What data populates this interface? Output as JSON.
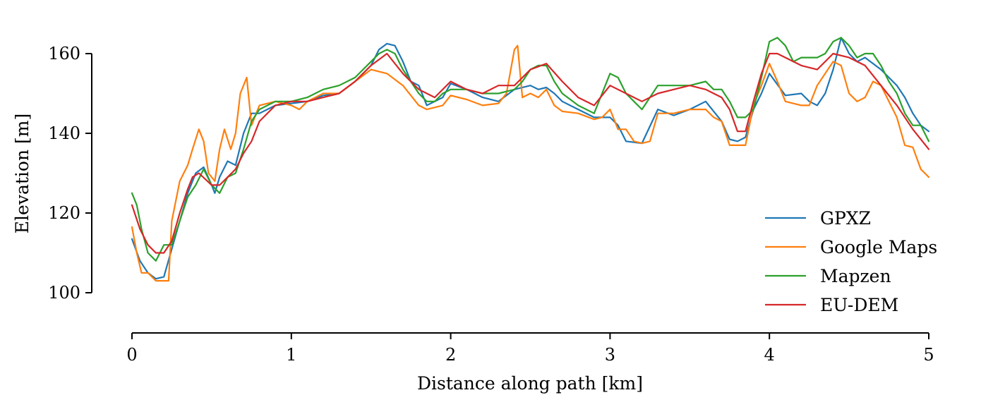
{
  "chart_data": {
    "type": "line",
    "xlabel": "Distance along path [km]",
    "ylabel": "Elevation [m]",
    "xlim": [
      0,
      5
    ],
    "ylim": [
      90,
      168
    ],
    "x_ticks": [
      0,
      1,
      2,
      3,
      4,
      5
    ],
    "y_ticks": [
      100,
      120,
      140,
      160
    ],
    "y_axis_span": [
      100,
      160
    ],
    "grid": false,
    "legend_position": "lower-right",
    "series": [
      {
        "name": "GPXZ",
        "color": "#1f77b4",
        "x": [
          0,
          0.05,
          0.1,
          0.15,
          0.2,
          0.25,
          0.3,
          0.35,
          0.4,
          0.45,
          0.5,
          0.52,
          0.55,
          0.6,
          0.65,
          0.7,
          0.75,
          0.8,
          0.9,
          1.0,
          1.1,
          1.2,
          1.3,
          1.4,
          1.5,
          1.55,
          1.6,
          1.65,
          1.7,
          1.75,
          1.8,
          1.85,
          1.9,
          1.95,
          2.0,
          2.1,
          2.2,
          2.3,
          2.4,
          2.5,
          2.55,
          2.6,
          2.65,
          2.7,
          2.8,
          2.9,
          3.0,
          3.05,
          3.1,
          3.2,
          3.3,
          3.4,
          3.5,
          3.6,
          3.7,
          3.75,
          3.8,
          3.85,
          3.9,
          3.95,
          4.0,
          4.1,
          4.2,
          4.25,
          4.3,
          4.35,
          4.4,
          4.45,
          4.5,
          4.55,
          4.6,
          4.7,
          4.8,
          4.85,
          4.9,
          4.95,
          5.0
        ],
        "y": [
          113.5,
          108,
          105,
          103.5,
          104,
          111,
          118,
          125,
          130,
          131.5,
          127,
          125,
          129,
          133,
          132,
          140,
          145,
          145,
          147,
          147.5,
          148,
          149.5,
          150,
          153,
          157,
          161,
          162.5,
          162,
          158,
          153,
          152,
          147,
          148,
          149,
          152.5,
          151,
          149,
          148,
          151,
          152,
          151,
          151.5,
          150,
          148,
          146,
          144,
          144,
          142,
          138,
          137.5,
          146,
          144.5,
          146,
          148,
          143,
          138.5,
          138,
          139,
          146,
          150,
          155,
          149.5,
          150,
          148,
          147,
          150,
          156,
          164,
          160,
          158,
          159,
          156,
          152,
          149,
          145,
          142,
          140.5
        ]
      },
      {
        "name": "Google Maps",
        "color": "#ff7f0e",
        "x": [
          0,
          0.03,
          0.06,
          0.1,
          0.15,
          0.2,
          0.23,
          0.25,
          0.3,
          0.35,
          0.38,
          0.42,
          0.45,
          0.48,
          0.52,
          0.55,
          0.58,
          0.62,
          0.65,
          0.68,
          0.72,
          0.75,
          0.8,
          0.9,
          1.0,
          1.05,
          1.1,
          1.2,
          1.3,
          1.4,
          1.5,
          1.6,
          1.7,
          1.8,
          1.85,
          1.9,
          1.95,
          2.0,
          2.1,
          2.2,
          2.3,
          2.35,
          2.4,
          2.42,
          2.45,
          2.5,
          2.55,
          2.6,
          2.65,
          2.7,
          2.8,
          2.9,
          2.95,
          3.0,
          3.05,
          3.1,
          3.15,
          3.2,
          3.25,
          3.3,
          3.4,
          3.5,
          3.6,
          3.65,
          3.7,
          3.75,
          3.8,
          3.85,
          3.9,
          3.95,
          4.0,
          4.05,
          4.1,
          4.2,
          4.25,
          4.3,
          4.4,
          4.45,
          4.5,
          4.55,
          4.6,
          4.65,
          4.7,
          4.75,
          4.8,
          4.85,
          4.9,
          4.95,
          5.0
        ],
        "y": [
          116.5,
          110,
          105,
          105,
          103,
          103,
          103,
          118,
          128,
          132,
          136,
          141,
          138,
          130,
          128,
          136,
          141,
          136,
          140,
          150,
          154,
          142,
          147,
          148,
          147,
          146,
          148,
          150,
          150,
          153,
          156,
          155,
          152,
          147,
          146,
          146.5,
          147,
          149.5,
          148.5,
          147,
          147.5,
          150,
          161,
          162,
          149,
          150,
          149,
          151,
          147,
          145.5,
          145,
          143.5,
          144,
          146,
          141,
          141,
          138,
          137.5,
          138,
          145,
          145,
          146,
          146,
          144,
          143,
          137,
          137,
          137,
          147,
          152,
          157.5,
          153,
          148,
          147,
          147,
          152,
          158,
          157,
          150,
          148,
          149,
          153,
          152,
          148,
          144,
          137,
          136.5,
          131,
          129
        ]
      },
      {
        "name": "Mapzen",
        "color": "#2ca02c",
        "x": [
          0,
          0.03,
          0.06,
          0.1,
          0.15,
          0.2,
          0.25,
          0.3,
          0.35,
          0.4,
          0.45,
          0.5,
          0.55,
          0.6,
          0.65,
          0.7,
          0.75,
          0.8,
          0.9,
          1.0,
          1.1,
          1.2,
          1.3,
          1.4,
          1.5,
          1.55,
          1.6,
          1.65,
          1.7,
          1.8,
          1.85,
          1.9,
          1.95,
          2.0,
          2.1,
          2.2,
          2.3,
          2.4,
          2.45,
          2.5,
          2.55,
          2.6,
          2.65,
          2.7,
          2.8,
          2.9,
          3.0,
          3.05,
          3.1,
          3.15,
          3.2,
          3.3,
          3.4,
          3.5,
          3.6,
          3.65,
          3.7,
          3.75,
          3.8,
          3.85,
          3.9,
          3.95,
          4.0,
          4.05,
          4.1,
          4.15,
          4.2,
          4.3,
          4.35,
          4.4,
          4.45,
          4.5,
          4.55,
          4.6,
          4.65,
          4.7,
          4.75,
          4.8,
          4.85,
          4.9,
          4.95,
          5.0
        ],
        "y": [
          125,
          122,
          116,
          110,
          108,
          112,
          112,
          118,
          124,
          127,
          131,
          127,
          125,
          129,
          130,
          136,
          143,
          146,
          148,
          148,
          149,
          151,
          152,
          154,
          158,
          160,
          161,
          160,
          156,
          150,
          148,
          148,
          150,
          151,
          151,
          150,
          150,
          151,
          153,
          156,
          157,
          157,
          153,
          150,
          147,
          145,
          155,
          154,
          150,
          148,
          146,
          152,
          152,
          152,
          153,
          151,
          151,
          148,
          144,
          144,
          146,
          154,
          163,
          164,
          162,
          158,
          159,
          159,
          160,
          163,
          164,
          162,
          159,
          160,
          160,
          157,
          153,
          150,
          145,
          142,
          142,
          138
        ]
      },
      {
        "name": "EU-DEM",
        "color": "#d62728",
        "x": [
          0,
          0.05,
          0.1,
          0.15,
          0.2,
          0.25,
          0.3,
          0.35,
          0.38,
          0.42,
          0.5,
          0.55,
          0.6,
          0.65,
          0.7,
          0.75,
          0.8,
          0.9,
          1.0,
          1.1,
          1.2,
          1.3,
          1.4,
          1.5,
          1.6,
          1.7,
          1.8,
          1.9,
          2.0,
          2.1,
          2.2,
          2.3,
          2.4,
          2.5,
          2.6,
          2.7,
          2.8,
          2.9,
          3.0,
          3.1,
          3.2,
          3.3,
          3.4,
          3.5,
          3.6,
          3.7,
          3.75,
          3.8,
          3.85,
          3.9,
          3.95,
          4.0,
          4.05,
          4.1,
          4.2,
          4.3,
          4.4,
          4.5,
          4.6,
          4.7,
          4.8,
          4.9,
          5.0
        ],
        "y": [
          122,
          116,
          112,
          110,
          110,
          113,
          120,
          126,
          129,
          130,
          127,
          127,
          129,
          131,
          135,
          138,
          143,
          147,
          148,
          148,
          149,
          150,
          153,
          157,
          160,
          155,
          151,
          149,
          153,
          151,
          150,
          152,
          152,
          156,
          157.5,
          153,
          149,
          147,
          152,
          150,
          148,
          150,
          151,
          152,
          151,
          149,
          146,
          140.5,
          140.5,
          148,
          155,
          160,
          160,
          159,
          157,
          156,
          160,
          159,
          157,
          152,
          147,
          141,
          136
        ]
      }
    ]
  }
}
